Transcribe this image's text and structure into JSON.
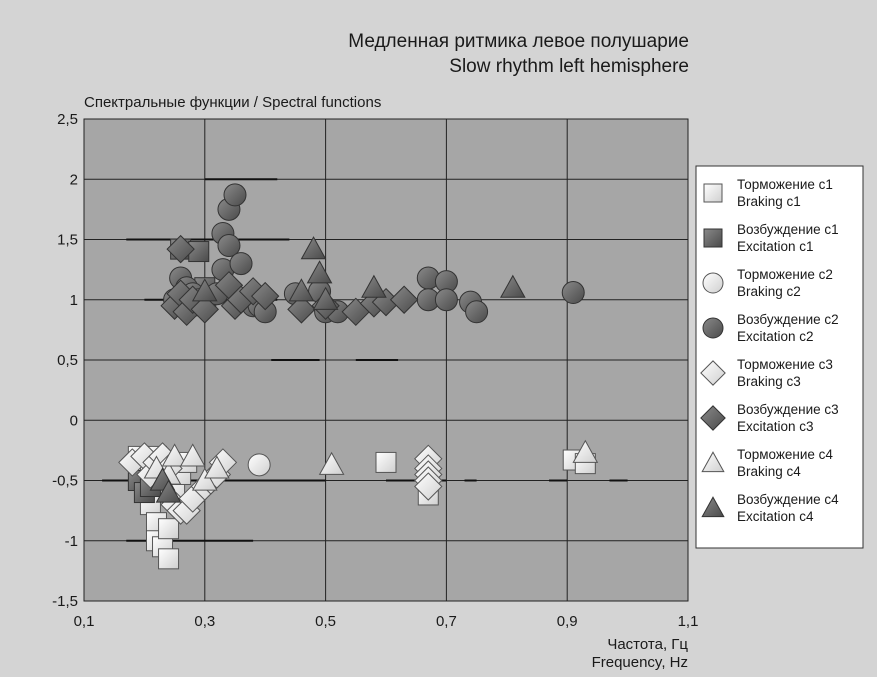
{
  "chart_data": {
    "type": "scatter",
    "title": "Медленная ритмика левое полушарие",
    "subtitle": "Slow rhythm left hemisphere",
    "ylabel": "Спектральные функции / Spectral functions",
    "xlabel_ru": "Частота, Гц",
    "xlabel_en": "Frequency, Hz",
    "xlim": [
      0.1,
      1.1
    ],
    "ylim": [
      -1.5,
      2.5
    ],
    "x_ticks": [
      "0,1",
      "0,3",
      "0,5",
      "0,7",
      "0,9",
      "1,1"
    ],
    "y_ticks": [
      "2,5",
      "2",
      "1,5",
      "1",
      "0,5",
      "0",
      "-0,5",
      "-1",
      "-1,5"
    ],
    "x_tick_values": [
      0.1,
      0.3,
      0.5,
      0.7,
      0.9,
      1.1
    ],
    "y_tick_values": [
      2.5,
      2,
      1.5,
      1,
      0.5,
      0,
      -0.5,
      -1,
      -1.5
    ],
    "grid": true,
    "legend_position": "right",
    "colors": {
      "background": "#d4d4d4",
      "plot": "#a6a6a6",
      "light_marker": "#f2f2f2",
      "dark_marker": "#666666",
      "grid": "#222222"
    },
    "reference_segments": [
      {
        "x": [
          0.3,
          0.42
        ],
        "y": 2
      },
      {
        "x": [
          0.17,
          0.44
        ],
        "y": 1.5
      },
      {
        "x": [
          0.2,
          0.42
        ],
        "y": 1
      },
      {
        "x": [
          0.41,
          0.49
        ],
        "y": 0.5
      },
      {
        "x": [
          0.55,
          0.62
        ],
        "y": 0.5
      },
      {
        "x": [
          0.13,
          0.5
        ],
        "y": -0.5
      },
      {
        "x": [
          0.6,
          0.7
        ],
        "y": -0.5
      },
      {
        "x": [
          0.73,
          0.75
        ],
        "y": -0.5
      },
      {
        "x": [
          0.87,
          0.9
        ],
        "y": -0.5
      },
      {
        "x": [
          0.97,
          1.0
        ],
        "y": -0.5
      },
      {
        "x": [
          0.17,
          0.38
        ],
        "y": -1
      }
    ],
    "series": [
      {
        "name_ru": "Торможение с1",
        "name_en": "Braking c1",
        "marker": "square",
        "fill": "light",
        "points": [
          {
            "x": 0.19,
            "y": -0.3
          },
          {
            "x": 0.2,
            "y": -0.35
          },
          {
            "x": 0.21,
            "y": -0.4
          },
          {
            "x": 0.22,
            "y": -0.3
          },
          {
            "x": 0.2,
            "y": -0.5
          },
          {
            "x": 0.21,
            "y": -0.7
          },
          {
            "x": 0.22,
            "y": -0.85
          },
          {
            "x": 0.22,
            "y": -1.0
          },
          {
            "x": 0.23,
            "y": -1.05
          },
          {
            "x": 0.24,
            "y": -1.15
          },
          {
            "x": 0.24,
            "y": -0.9
          },
          {
            "x": 0.25,
            "y": -0.6
          },
          {
            "x": 0.26,
            "y": -0.45
          },
          {
            "x": 0.27,
            "y": -0.35
          },
          {
            "x": 0.6,
            "y": -0.35
          },
          {
            "x": 0.67,
            "y": -0.62
          },
          {
            "x": 0.91,
            "y": -0.33
          },
          {
            "x": 0.93,
            "y": -0.36
          }
        ]
      },
      {
        "name_ru": "Возбуждение с1",
        "name_en": "Excitation c1",
        "marker": "square",
        "fill": "dark",
        "points": [
          {
            "x": 0.26,
            "y": 1.42
          },
          {
            "x": 0.29,
            "y": 1.4
          },
          {
            "x": 0.3,
            "y": 1.1
          },
          {
            "x": 0.28,
            "y": 0.95
          },
          {
            "x": 0.19,
            "y": -0.5
          },
          {
            "x": 0.2,
            "y": -0.6
          },
          {
            "x": 0.21,
            "y": -0.55
          }
        ]
      },
      {
        "name_ru": "Торможение с2",
        "name_en": "Braking c2",
        "marker": "circle",
        "fill": "light",
        "points": [
          {
            "x": 0.39,
            "y": -0.37
          }
        ]
      },
      {
        "name_ru": "Возбуждение с2",
        "name_en": "Excitation c2",
        "marker": "circle",
        "fill": "dark",
        "points": [
          {
            "x": 0.25,
            "y": 1.0
          },
          {
            "x": 0.26,
            "y": 1.18
          },
          {
            "x": 0.27,
            "y": 1.1
          },
          {
            "x": 0.28,
            "y": 1.05
          },
          {
            "x": 0.29,
            "y": 1.0
          },
          {
            "x": 0.3,
            "y": 0.95
          },
          {
            "x": 0.32,
            "y": 1.05
          },
          {
            "x": 0.33,
            "y": 1.25
          },
          {
            "x": 0.33,
            "y": 1.55
          },
          {
            "x": 0.34,
            "y": 1.75
          },
          {
            "x": 0.35,
            "y": 1.87
          },
          {
            "x": 0.34,
            "y": 1.45
          },
          {
            "x": 0.36,
            "y": 1.3
          },
          {
            "x": 0.37,
            "y": 1.0
          },
          {
            "x": 0.38,
            "y": 0.95
          },
          {
            "x": 0.39,
            "y": 0.95
          },
          {
            "x": 0.4,
            "y": 0.9
          },
          {
            "x": 0.45,
            "y": 1.05
          },
          {
            "x": 0.49,
            "y": 1.07
          },
          {
            "x": 0.5,
            "y": 0.9
          },
          {
            "x": 0.52,
            "y": 0.9
          },
          {
            "x": 0.67,
            "y": 1.18
          },
          {
            "x": 0.67,
            "y": 1.0
          },
          {
            "x": 0.7,
            "y": 1.15
          },
          {
            "x": 0.7,
            "y": 1.0
          },
          {
            "x": 0.74,
            "y": 0.98
          },
          {
            "x": 0.75,
            "y": 0.9
          },
          {
            "x": 0.91,
            "y": 1.06
          }
        ]
      },
      {
        "name_ru": "Торможение с3",
        "name_en": "Braking c3",
        "marker": "diamond",
        "fill": "light",
        "points": [
          {
            "x": 0.18,
            "y": -0.35
          },
          {
            "x": 0.2,
            "y": -0.3
          },
          {
            "x": 0.21,
            "y": -0.45
          },
          {
            "x": 0.22,
            "y": -0.35
          },
          {
            "x": 0.23,
            "y": -0.3
          },
          {
            "x": 0.24,
            "y": -0.4
          },
          {
            "x": 0.25,
            "y": -0.7
          },
          {
            "x": 0.26,
            "y": -0.75
          },
          {
            "x": 0.27,
            "y": -0.75
          },
          {
            "x": 0.28,
            "y": -0.65
          },
          {
            "x": 0.3,
            "y": -0.55
          },
          {
            "x": 0.31,
            "y": -0.5
          },
          {
            "x": 0.32,
            "y": -0.45
          },
          {
            "x": 0.33,
            "y": -0.35
          },
          {
            "x": 0.67,
            "y": -0.32
          },
          {
            "x": 0.67,
            "y": -0.4
          },
          {
            "x": 0.67,
            "y": -0.45
          },
          {
            "x": 0.67,
            "y": -0.5
          },
          {
            "x": 0.67,
            "y": -0.55
          }
        ]
      },
      {
        "name_ru": "Возбуждение с3",
        "name_en": "Excitation c3",
        "marker": "diamond",
        "fill": "dark",
        "points": [
          {
            "x": 0.26,
            "y": 1.42
          },
          {
            "x": 0.25,
            "y": 0.95
          },
          {
            "x": 0.26,
            "y": 1.05
          },
          {
            "x": 0.27,
            "y": 0.9
          },
          {
            "x": 0.28,
            "y": 1.0
          },
          {
            "x": 0.3,
            "y": 0.92
          },
          {
            "x": 0.34,
            "y": 1.12
          },
          {
            "x": 0.35,
            "y": 0.95
          },
          {
            "x": 0.36,
            "y": 1.0
          },
          {
            "x": 0.38,
            "y": 1.07
          },
          {
            "x": 0.4,
            "y": 1.03
          },
          {
            "x": 0.46,
            "y": 0.92
          },
          {
            "x": 0.5,
            "y": 0.95
          },
          {
            "x": 0.55,
            "y": 0.9
          },
          {
            "x": 0.58,
            "y": 0.97
          },
          {
            "x": 0.6,
            "y": 0.98
          },
          {
            "x": 0.63,
            "y": 1.0
          }
        ]
      },
      {
        "name_ru": "Торможение с4",
        "name_en": "Braking c4",
        "marker": "triangle",
        "fill": "light",
        "points": [
          {
            "x": 0.22,
            "y": -0.4
          },
          {
            "x": 0.23,
            "y": -0.5
          },
          {
            "x": 0.24,
            "y": -0.45
          },
          {
            "x": 0.25,
            "y": -0.3
          },
          {
            "x": 0.28,
            "y": -0.3
          },
          {
            "x": 0.3,
            "y": -0.5
          },
          {
            "x": 0.32,
            "y": -0.4
          },
          {
            "x": 0.51,
            "y": -0.37
          },
          {
            "x": 0.93,
            "y": -0.27
          }
        ]
      },
      {
        "name_ru": "Возбуждение с4",
        "name_en": "Excitation c4",
        "marker": "triangle",
        "fill": "dark",
        "points": [
          {
            "x": 0.3,
            "y": 1.07
          },
          {
            "x": 0.46,
            "y": 1.07
          },
          {
            "x": 0.48,
            "y": 1.42
          },
          {
            "x": 0.49,
            "y": 1.22
          },
          {
            "x": 0.5,
            "y": 1.0
          },
          {
            "x": 0.58,
            "y": 1.1
          },
          {
            "x": 0.81,
            "y": 1.1
          },
          {
            "x": 0.23,
            "y": -0.5
          },
          {
            "x": 0.24,
            "y": -0.6
          }
        ]
      }
    ]
  }
}
